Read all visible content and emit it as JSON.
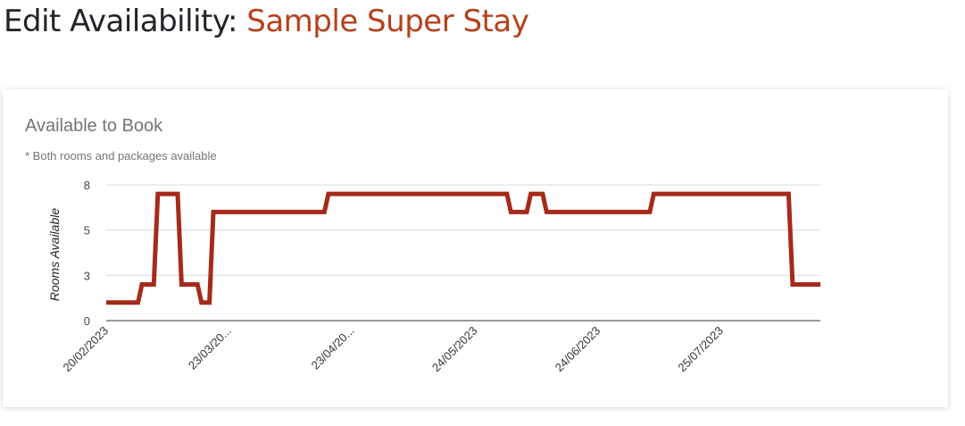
{
  "header": {
    "prefix": "Edit Availability: ",
    "property_name": "Sample Super Stay"
  },
  "card": {
    "title": "Available to Book",
    "subtitle": "* Both rooms and packages available"
  },
  "chart_data": {
    "type": "line",
    "title": "Available to Book",
    "subtitle": "* Both rooms and packages available",
    "xlabel": "",
    "ylabel": "Rooms Available",
    "ylim": [
      0,
      7.5
    ],
    "yticks": [
      {
        "value": 0,
        "label": "0"
      },
      {
        "value": 2.5,
        "label": "3"
      },
      {
        "value": 5,
        "label": "5"
      },
      {
        "value": 7.5,
        "label": "8"
      }
    ],
    "xlim": [
      "20/02/2023",
      "19/08/2023"
    ],
    "xticks": [
      "20/02/2023",
      "23/03/20...",
      "23/04/20...",
      "24/05/2023",
      "24/06/2023",
      "25/07/2023"
    ],
    "xtick_dates": [
      "20/02/2023",
      "23/03/2023",
      "23/04/2023",
      "24/05/2023",
      "24/06/2023",
      "25/07/2023"
    ],
    "grid": true,
    "line_color": "#a52a1a",
    "series": [
      {
        "points": [
          [
            "20/02/2023",
            1
          ],
          [
            "28/02/2023",
            1
          ],
          [
            "01/03/2023",
            2
          ],
          [
            "04/03/2023",
            2
          ],
          [
            "05/03/2023",
            7
          ],
          [
            "10/03/2023",
            7
          ],
          [
            "11/03/2023",
            2
          ],
          [
            "15/03/2023",
            2
          ],
          [
            "16/03/2023",
            1
          ],
          [
            "18/03/2023",
            1
          ],
          [
            "19/03/2023",
            6
          ],
          [
            "16/04/2023",
            6
          ],
          [
            "17/04/2023",
            7
          ],
          [
            "01/06/2023",
            7
          ],
          [
            "02/06/2023",
            6
          ],
          [
            "06/06/2023",
            6
          ],
          [
            "07/06/2023",
            7
          ],
          [
            "10/06/2023",
            7
          ],
          [
            "11/06/2023",
            6
          ],
          [
            "07/07/2023",
            6
          ],
          [
            "08/07/2023",
            7
          ],
          [
            "11/08/2023",
            7
          ],
          [
            "12/08/2023",
            2
          ],
          [
            "19/08/2023",
            2
          ]
        ]
      }
    ]
  }
}
